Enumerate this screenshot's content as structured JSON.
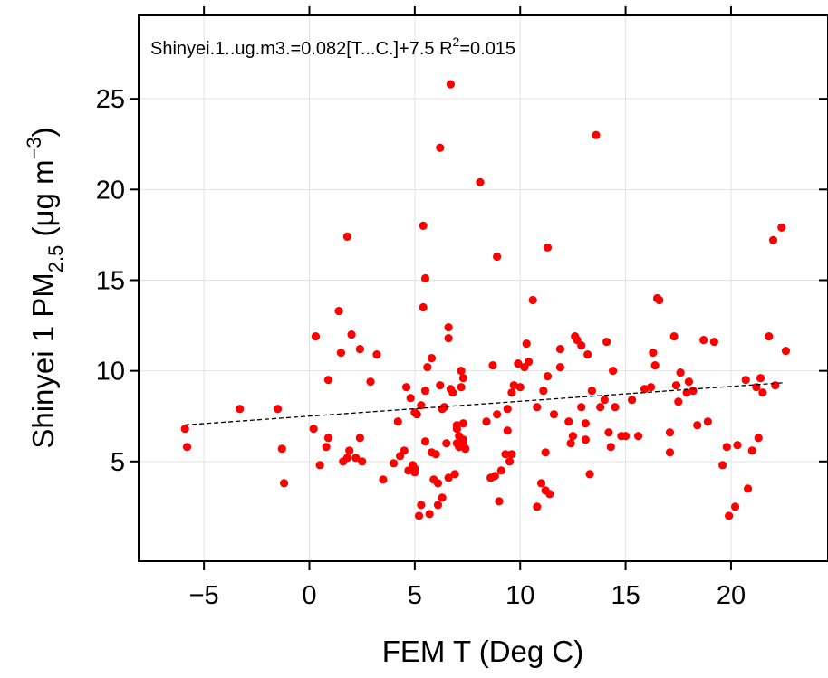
{
  "chart_data": {
    "type": "scatter",
    "annotation": {
      "main": "Shinyei.1..ug.m3.=0.082[T...C.]+7.5 R",
      "sup": "2",
      "tail": "=0.015"
    },
    "xlabel": "FEM T (Deg C)",
    "ylabel": {
      "main": "Shinyei 1 PM",
      "sub": "2.5",
      "units": " (μg m",
      "sup": "−3",
      "close": ")"
    },
    "xlim": [
      -8.1,
      24.6
    ],
    "ylim": [
      -0.5,
      29.6
    ],
    "xticks": [
      -5,
      0,
      5,
      10,
      15,
      20
    ],
    "yticks": [
      5,
      10,
      15,
      20,
      25
    ],
    "grid": true,
    "point_color": "#ff0000",
    "fit_line": {
      "slope": 0.082,
      "intercept": 7.5,
      "x_range": [
        -5.9,
        22.5
      ],
      "style": "dashed",
      "color": "#000000"
    },
    "points": [
      [
        -5.9,
        6.8
      ],
      [
        -5.8,
        5.8
      ],
      [
        -3.3,
        7.9
      ],
      [
        -1.5,
        7.9
      ],
      [
        -1.3,
        5.7
      ],
      [
        -1.2,
        3.8
      ],
      [
        0.2,
        6.8
      ],
      [
        0.3,
        11.9
      ],
      [
        0.5,
        4.8
      ],
      [
        0.8,
        5.8
      ],
      [
        0.9,
        9.5
      ],
      [
        0.9,
        6.3
      ],
      [
        1.4,
        13.3
      ],
      [
        1.5,
        11.0
      ],
      [
        1.6,
        5.0
      ],
      [
        1.8,
        17.4
      ],
      [
        1.8,
        5.2
      ],
      [
        1.9,
        5.6
      ],
      [
        2.0,
        12.0
      ],
      [
        2.2,
        5.2
      ],
      [
        2.4,
        11.2
      ],
      [
        2.4,
        6.3
      ],
      [
        2.5,
        5.0
      ],
      [
        2.9,
        9.4
      ],
      [
        3.2,
        10.9
      ],
      [
        3.5,
        4.0
      ],
      [
        4.0,
        4.9
      ],
      [
        4.2,
        7.2
      ],
      [
        4.3,
        5.3
      ],
      [
        4.5,
        5.6
      ],
      [
        4.6,
        9.1
      ],
      [
        4.7,
        4.5
      ],
      [
        4.8,
        8.5
      ],
      [
        4.9,
        4.8
      ],
      [
        5.0,
        4.4
      ],
      [
        5.0,
        7.7
      ],
      [
        5.0,
        4.6
      ],
      [
        5.1,
        7.6
      ],
      [
        5.2,
        2.0
      ],
      [
        5.3,
        8.1
      ],
      [
        5.3,
        2.6
      ],
      [
        5.4,
        13.5
      ],
      [
        5.4,
        18.0
      ],
      [
        5.5,
        15.1
      ],
      [
        5.5,
        8.9
      ],
      [
        5.5,
        6.1
      ],
      [
        5.6,
        10.2
      ],
      [
        5.7,
        2.1
      ],
      [
        5.8,
        10.7
      ],
      [
        5.8,
        5.5
      ],
      [
        5.9,
        4.0
      ],
      [
        6.0,
        5.4
      ],
      [
        6.1,
        3.8
      ],
      [
        6.1,
        2.6
      ],
      [
        6.2,
        9.2
      ],
      [
        6.2,
        22.3
      ],
      [
        6.3,
        3.0
      ],
      [
        6.3,
        7.9
      ],
      [
        6.4,
        8.0
      ],
      [
        6.5,
        6.0
      ],
      [
        6.6,
        4.1
      ],
      [
        6.6,
        11.8
      ],
      [
        6.6,
        12.4
      ],
      [
        6.7,
        25.8
      ],
      [
        6.7,
        9.0
      ],
      [
        6.8,
        8.8
      ],
      [
        6.9,
        4.3
      ],
      [
        7.0,
        7.0
      ],
      [
        7.0,
        6.8
      ],
      [
        7.0,
        6.0
      ],
      [
        7.1,
        5.8
      ],
      [
        7.1,
        6.4
      ],
      [
        7.2,
        9.1
      ],
      [
        7.2,
        10.0
      ],
      [
        7.3,
        6.2
      ],
      [
        7.3,
        5.9
      ],
      [
        7.3,
        9.6
      ],
      [
        7.3,
        7.1
      ],
      [
        7.4,
        5.7
      ],
      [
        8.1,
        20.4
      ],
      [
        8.4,
        7.2
      ],
      [
        8.6,
        4.1
      ],
      [
        8.7,
        10.3
      ],
      [
        8.8,
        4.2
      ],
      [
        8.9,
        7.6
      ],
      [
        8.9,
        16.3
      ],
      [
        9.0,
        2.8
      ],
      [
        9.1,
        4.5
      ],
      [
        9.3,
        5.4
      ],
      [
        9.4,
        6.7
      ],
      [
        9.4,
        7.9
      ],
      [
        9.5,
        5.0
      ],
      [
        9.6,
        8.8
      ],
      [
        9.6,
        5.4
      ],
      [
        9.7,
        9.2
      ],
      [
        9.9,
        10.4
      ],
      [
        10.0,
        9.1
      ],
      [
        10.2,
        10.2
      ],
      [
        10.3,
        11.5
      ],
      [
        10.4,
        10.5
      ],
      [
        10.6,
        13.9
      ],
      [
        10.8,
        2.5
      ],
      [
        10.8,
        8.0
      ],
      [
        11.0,
        3.8
      ],
      [
        11.1,
        8.9
      ],
      [
        11.2,
        5.5
      ],
      [
        11.2,
        3.4
      ],
      [
        11.3,
        16.8
      ],
      [
        11.3,
        9.7
      ],
      [
        11.4,
        3.2
      ],
      [
        11.6,
        7.6
      ],
      [
        11.9,
        11.2
      ],
      [
        11.9,
        10.2
      ],
      [
        12.3,
        7.2
      ],
      [
        12.4,
        6.0
      ],
      [
        12.5,
        6.4
      ],
      [
        12.6,
        11.9
      ],
      [
        12.7,
        11.7
      ],
      [
        12.9,
        11.4
      ],
      [
        12.9,
        8.0
      ],
      [
        13.1,
        7.1
      ],
      [
        13.1,
        6.2
      ],
      [
        13.2,
        10.9
      ],
      [
        13.3,
        4.3
      ],
      [
        13.4,
        8.9
      ],
      [
        13.6,
        23.0
      ],
      [
        13.8,
        8.0
      ],
      [
        14.0,
        8.4
      ],
      [
        14.1,
        11.6
      ],
      [
        14.2,
        6.6
      ],
      [
        14.3,
        5.8
      ],
      [
        14.4,
        10.0
      ],
      [
        14.5,
        8.0
      ],
      [
        14.8,
        6.4
      ],
      [
        15.0,
        6.4
      ],
      [
        15.3,
        8.4
      ],
      [
        15.6,
        6.4
      ],
      [
        15.9,
        9.0
      ],
      [
        16.2,
        9.1
      ],
      [
        16.3,
        11.0
      ],
      [
        16.4,
        10.3
      ],
      [
        16.5,
        14.0
      ],
      [
        16.6,
        13.9
      ],
      [
        17.1,
        6.6
      ],
      [
        17.1,
        5.5
      ],
      [
        17.3,
        11.9
      ],
      [
        17.4,
        9.2
      ],
      [
        17.5,
        8.3
      ],
      [
        17.6,
        9.9
      ],
      [
        17.9,
        8.8
      ],
      [
        18.0,
        9.4
      ],
      [
        18.2,
        8.9
      ],
      [
        18.4,
        7.0
      ],
      [
        18.7,
        11.7
      ],
      [
        18.9,
        7.2
      ],
      [
        19.2,
        11.6
      ],
      [
        19.6,
        4.8
      ],
      [
        19.8,
        5.8
      ],
      [
        19.9,
        2.0
      ],
      [
        20.2,
        2.5
      ],
      [
        20.3,
        5.9
      ],
      [
        20.7,
        9.5
      ],
      [
        20.8,
        3.5
      ],
      [
        21.0,
        5.6
      ],
      [
        21.2,
        9.1
      ],
      [
        21.3,
        6.3
      ],
      [
        21.4,
        9.6
      ],
      [
        21.5,
        8.8
      ],
      [
        21.8,
        11.9
      ],
      [
        22.0,
        17.2
      ],
      [
        22.1,
        9.2
      ],
      [
        22.4,
        17.9
      ],
      [
        22.6,
        11.1
      ]
    ]
  }
}
